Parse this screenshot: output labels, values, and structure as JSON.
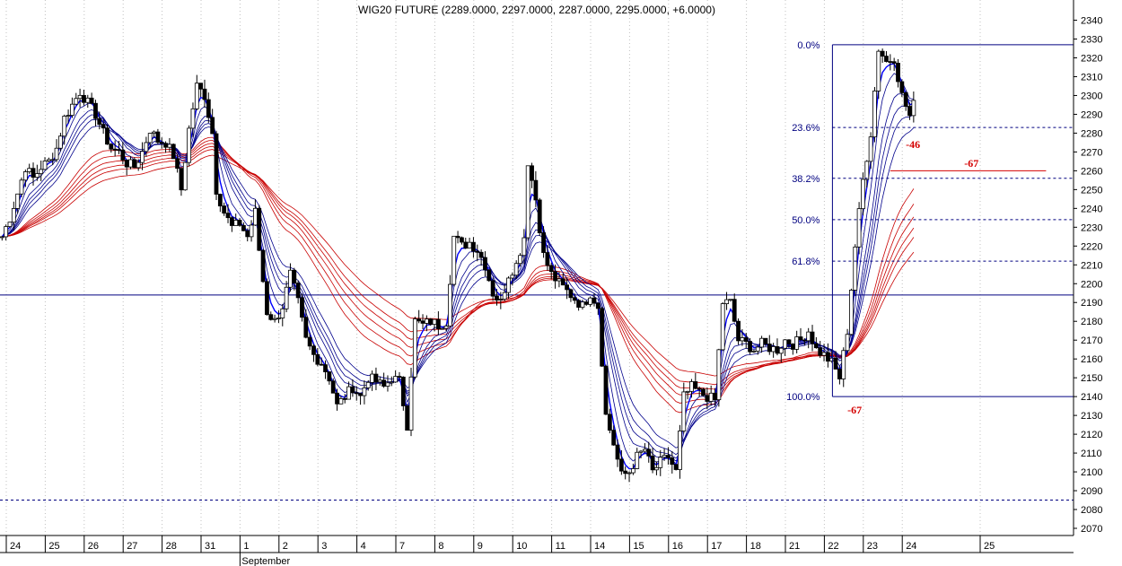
{
  "chart_data": {
    "type": "candlestick",
    "title": "WIG20 FUTURE (2289.0000, 2297.0000, 2287.0000, 2295.0000, +6.0000)",
    "ylim": [
      2065,
      2350
    ],
    "y_ticks": [
      2070,
      2080,
      2090,
      2100,
      2110,
      2120,
      2130,
      2140,
      2150,
      2160,
      2170,
      2180,
      2190,
      2200,
      2210,
      2220,
      2230,
      2240,
      2250,
      2260,
      2270,
      2280,
      2290,
      2300,
      2310,
      2320,
      2330,
      2340
    ],
    "x_ticks": [
      {
        "label": "24",
        "day": 0
      },
      {
        "label": "25",
        "day": 1
      },
      {
        "label": "26",
        "day": 2
      },
      {
        "label": "27",
        "day": 3
      },
      {
        "label": "28",
        "day": 4
      },
      {
        "label": "31",
        "day": 5
      },
      {
        "label": "1",
        "day": 6
      },
      {
        "label": "2",
        "day": 7
      },
      {
        "label": "3",
        "day": 8
      },
      {
        "label": "4",
        "day": 9
      },
      {
        "label": "7",
        "day": 10
      },
      {
        "label": "8",
        "day": 11
      },
      {
        "label": "9",
        "day": 12
      },
      {
        "label": "10",
        "day": 13
      },
      {
        "label": "11",
        "day": 14
      },
      {
        "label": "14",
        "day": 15
      },
      {
        "label": "15",
        "day": 16
      },
      {
        "label": "16",
        "day": 17
      },
      {
        "label": "17",
        "day": 18
      },
      {
        "label": "18",
        "day": 19
      },
      {
        "label": "21",
        "day": 20
      },
      {
        "label": "22",
        "day": 21
      },
      {
        "label": "23",
        "day": 22
      },
      {
        "label": "24",
        "day": 23
      },
      {
        "label": "25",
        "day": 25
      }
    ],
    "month_label": "September",
    "close_path": [
      [
        -0.5,
        2225
      ],
      [
        -0.3,
        2235
      ],
      [
        -0.1,
        2248
      ],
      [
        0.1,
        2262
      ],
      [
        0.3,
        2256
      ],
      [
        0.5,
        2262
      ],
      [
        0.7,
        2265
      ],
      [
        0.9,
        2272
      ],
      [
        1.1,
        2288
      ],
      [
        1.3,
        2295
      ],
      [
        1.5,
        2302
      ],
      [
        1.7,
        2296
      ],
      [
        1.9,
        2290
      ],
      [
        2.1,
        2280
      ],
      [
        2.3,
        2272
      ],
      [
        2.5,
        2270
      ],
      [
        2.7,
        2264
      ],
      [
        2.9,
        2262
      ],
      [
        3.1,
        2270
      ],
      [
        3.3,
        2282
      ],
      [
        3.5,
        2276
      ],
      [
        3.7,
        2275
      ],
      [
        3.9,
        2268
      ],
      [
        4.1,
        2250
      ],
      [
        4.3,
        2282
      ],
      [
        4.5,
        2305
      ],
      [
        4.7,
        2300
      ],
      [
        4.9,
        2280
      ],
      [
        5.0,
        2250
      ],
      [
        5.2,
        2238
      ],
      [
        5.4,
        2230
      ],
      [
        5.6,
        2232
      ],
      [
        5.8,
        2225
      ],
      [
        6.0,
        2238
      ],
      [
        6.1,
        2218
      ],
      [
        6.3,
        2185
      ],
      [
        6.5,
        2180
      ],
      [
        6.7,
        2188
      ],
      [
        6.9,
        2205
      ],
      [
        7.1,
        2190
      ],
      [
        7.3,
        2170
      ],
      [
        7.5,
        2162
      ],
      [
        7.7,
        2158
      ],
      [
        7.9,
        2150
      ],
      [
        8.1,
        2135
      ],
      [
        8.3,
        2140
      ],
      [
        8.5,
        2145
      ],
      [
        8.7,
        2140
      ],
      [
        8.9,
        2150
      ],
      [
        9.1,
        2148
      ],
      [
        9.3,
        2145
      ],
      [
        9.5,
        2150
      ],
      [
        9.7,
        2148
      ],
      [
        9.9,
        2125
      ],
      [
        10.1,
        2180
      ],
      [
        10.3,
        2178
      ],
      [
        10.5,
        2180
      ],
      [
        10.7,
        2178
      ],
      [
        10.9,
        2180
      ],
      [
        11.1,
        2225
      ],
      [
        11.3,
        2220
      ],
      [
        11.5,
        2222
      ],
      [
        11.7,
        2218
      ],
      [
        11.9,
        2210
      ],
      [
        12.1,
        2195
      ],
      [
        12.3,
        2190
      ],
      [
        12.5,
        2205
      ],
      [
        12.7,
        2210
      ],
      [
        12.9,
        2225
      ],
      [
        13.0,
        2265
      ],
      [
        13.2,
        2245
      ],
      [
        13.4,
        2215
      ],
      [
        13.6,
        2205
      ],
      [
        13.8,
        2200
      ],
      [
        14.0,
        2196
      ],
      [
        14.2,
        2192
      ],
      [
        14.4,
        2188
      ],
      [
        14.6,
        2195
      ],
      [
        14.8,
        2188
      ],
      [
        15.0,
        2130
      ],
      [
        15.2,
        2115
      ],
      [
        15.4,
        2098
      ],
      [
        15.6,
        2100
      ],
      [
        15.8,
        2108
      ],
      [
        16.0,
        2112
      ],
      [
        16.2,
        2100
      ],
      [
        16.4,
        2105
      ],
      [
        16.6,
        2108
      ],
      [
        16.8,
        2100
      ],
      [
        17.0,
        2140
      ],
      [
        17.2,
        2145
      ],
      [
        17.4,
        2142
      ],
      [
        17.6,
        2140
      ],
      [
        17.8,
        2138
      ],
      [
        18.0,
        2190
      ],
      [
        18.2,
        2190
      ],
      [
        18.4,
        2170
      ],
      [
        18.6,
        2168
      ],
      [
        18.8,
        2165
      ],
      [
        19.0,
        2168
      ],
      [
        19.2,
        2166
      ],
      [
        19.4,
        2165
      ],
      [
        19.6,
        2170
      ],
      [
        19.8,
        2168
      ],
      [
        20.0,
        2170
      ],
      [
        20.2,
        2175
      ],
      [
        20.4,
        2165
      ],
      [
        20.6,
        2162
      ],
      [
        20.8,
        2158
      ],
      [
        21.0,
        2150
      ],
      [
        21.2,
        2175
      ],
      [
        21.4,
        2220
      ],
      [
        21.6,
        2255
      ],
      [
        21.8,
        2280
      ],
      [
        22.0,
        2325
      ],
      [
        22.2,
        2318
      ],
      [
        22.4,
        2320
      ],
      [
        22.6,
        2300
      ],
      [
        22.8,
        2289
      ],
      [
        22.9,
        2295
      ]
    ],
    "ribbon": {
      "fast_color": "#00008b",
      "slow_color": "#c80000",
      "fast_periods": [
        3,
        5,
        8,
        10,
        12,
        15
      ],
      "slow_periods": [
        30,
        35,
        40,
        45,
        50,
        60
      ]
    },
    "horizontal_lines": [
      {
        "y": 2194,
        "style": "solid",
        "color": "#000080"
      },
      {
        "y": 2085,
        "style": "dashed",
        "color": "#000080"
      }
    ],
    "fibonacci": {
      "high": 2327,
      "low": 2140,
      "levels": [
        {
          "label": "0.0%",
          "y": 2327,
          "style": "solid"
        },
        {
          "label": "23.6%",
          "y": 2283,
          "style": "dashed"
        },
        {
          "label": "38.2%",
          "y": 2256,
          "style": "dashed"
        },
        {
          "label": "50.0%",
          "y": 2234,
          "style": "dashed"
        },
        {
          "label": "61.8%",
          "y": 2212,
          "style": "dashed"
        },
        {
          "label": "100.0%",
          "y": 2140,
          "style": "solid"
        }
      ]
    },
    "annotations": [
      {
        "text": "-46",
        "x": 22.7,
        "y": 2272
      },
      {
        "text": "-67",
        "x": 24.2,
        "y": 2262
      },
      {
        "text": "-67",
        "x": 21.2,
        "y": 2131
      }
    ]
  }
}
